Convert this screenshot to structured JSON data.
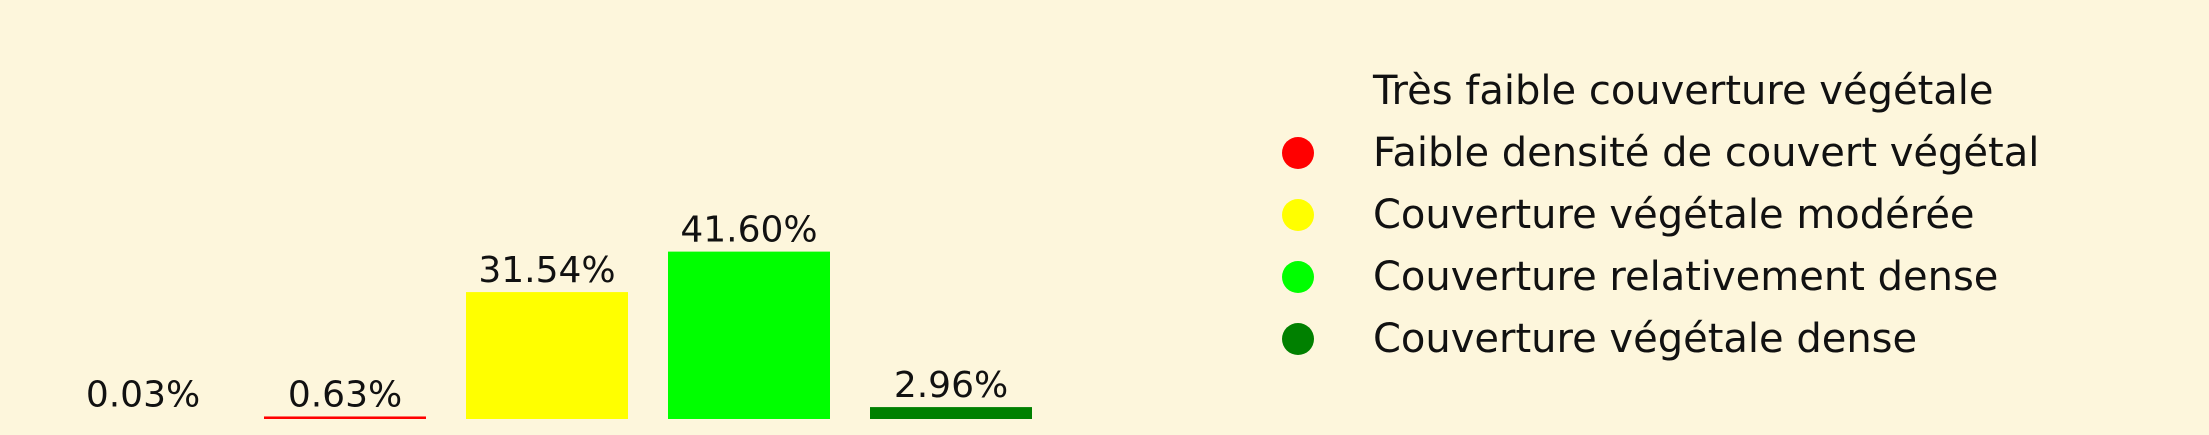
{
  "chart_data": {
    "type": "bar",
    "background_color": "#fdf6dc",
    "categories": [
      "Très faible couverture végétale",
      "Faible densité de couvert végétal",
      "Couverture végétale modérée",
      "Couverture relativement dense",
      "Couverture végétale dense"
    ],
    "values": [
      0.03,
      0.63,
      31.54,
      41.6,
      2.96
    ],
    "value_labels": [
      "0.03%",
      "0.63%",
      "31.54%",
      "41.60%",
      "2.96%"
    ],
    "colors": [
      "#fdf6dc",
      "#ff0000",
      "#ffff00",
      "#00ff00",
      "#008000"
    ],
    "ylim": [
      0,
      42
    ],
    "grid": false,
    "axes_visible": false,
    "legend_placement": "right",
    "legend": [
      {
        "label": "Très faible couverture végétale",
        "color": "#fdf6dc"
      },
      {
        "label": "Faible densité de couvert végétal",
        "color": "#ff0000"
      },
      {
        "label": "Couverture végétale modérée",
        "color": "#ffff00"
      },
      {
        "label": "Couverture relativement dense",
        "color": "#00ff00"
      },
      {
        "label": "Couverture végétale dense",
        "color": "#008000"
      }
    ]
  }
}
